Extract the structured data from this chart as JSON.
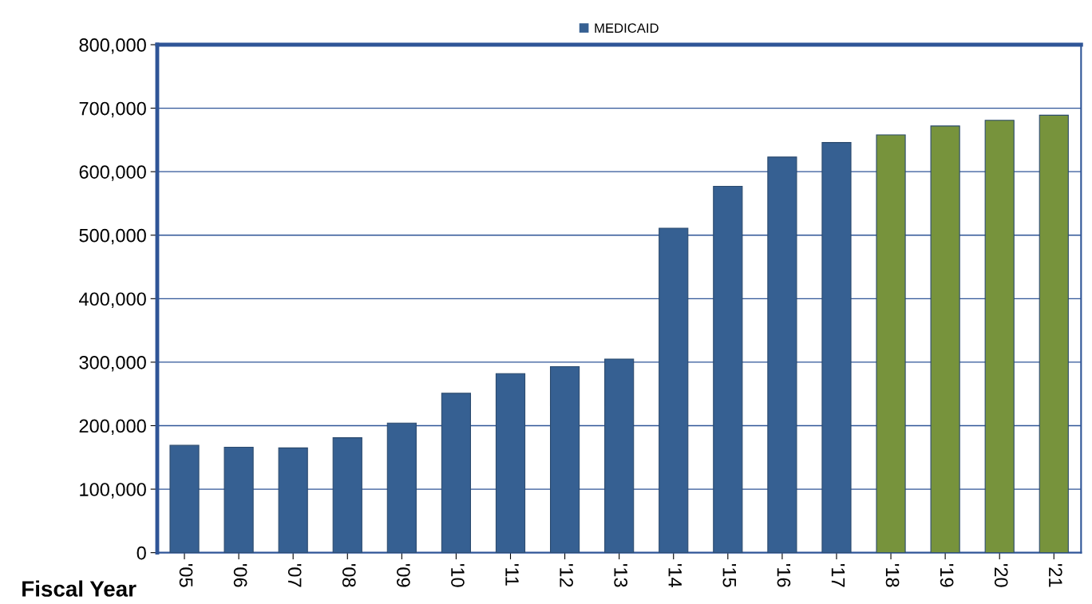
{
  "chart_data": {
    "type": "bar",
    "xlabel": "Fiscal Year",
    "categories": [
      "'05",
      "'06",
      "'07",
      "'08",
      "'09",
      "'10",
      "'11",
      "'12",
      "'13",
      "'14",
      "'15",
      "'16",
      "'17",
      "'18",
      "'19",
      "'20",
      "'21"
    ],
    "series": [
      {
        "name": "MEDICAID",
        "color": "#366092",
        "values": [
          169000,
          166000,
          165000,
          181000,
          204000,
          251000,
          282000,
          293000,
          305000,
          511000,
          577000,
          623000,
          646000,
          658000,
          672000,
          681000,
          689000
        ],
        "colors": [
          "#366092",
          "#366092",
          "#366092",
          "#366092",
          "#366092",
          "#366092",
          "#366092",
          "#366092",
          "#366092",
          "#366092",
          "#366092",
          "#366092",
          "#366092",
          "#77933c",
          "#77933c",
          "#77933c",
          "#77933c"
        ]
      }
    ],
    "ylim": [
      0,
      800000
    ],
    "yticks": [
      {
        "value": 0,
        "label": "0"
      },
      {
        "value": 100000,
        "label": "100,000"
      },
      {
        "value": 200000,
        "label": "200,000"
      },
      {
        "value": 300000,
        "label": "300,000"
      },
      {
        "value": 400000,
        "label": "400,000"
      },
      {
        "value": 500000,
        "label": "500,000"
      },
      {
        "value": 600000,
        "label": "600,000"
      },
      {
        "value": 700000,
        "label": "700,000"
      },
      {
        "value": 800000,
        "label": "800,000"
      }
    ],
    "grid": "y",
    "legend": "top"
  }
}
